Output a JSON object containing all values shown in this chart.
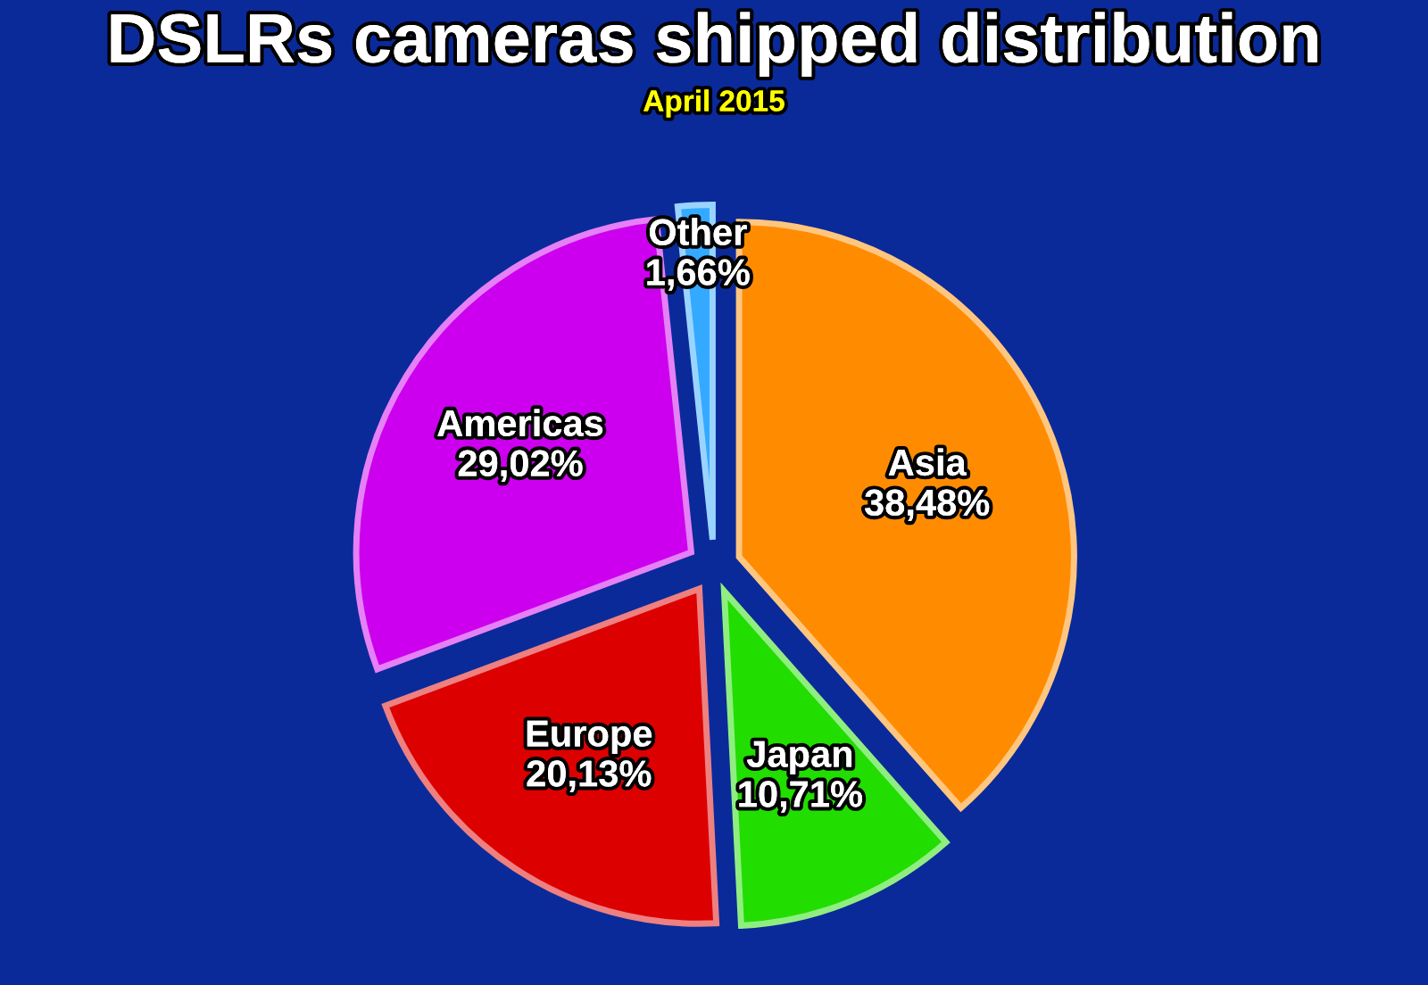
{
  "chart_data": {
    "type": "pie",
    "title": "DSLRs cameras shipped distribution",
    "subtitle": "April 2015",
    "categories": [
      "Asia",
      "Japan",
      "Europe",
      "Americas",
      "Other"
    ],
    "values": [
      38.48,
      10.71,
      20.13,
      29.02,
      1.66
    ],
    "colors": [
      "#ff8c00",
      "#22dd00",
      "#dd0000",
      "#cc00ee",
      "#33aaff"
    ],
    "value_labels": [
      "38,48%",
      "10,71%",
      "20,13%",
      "29,02%",
      "1,66%"
    ]
  }
}
